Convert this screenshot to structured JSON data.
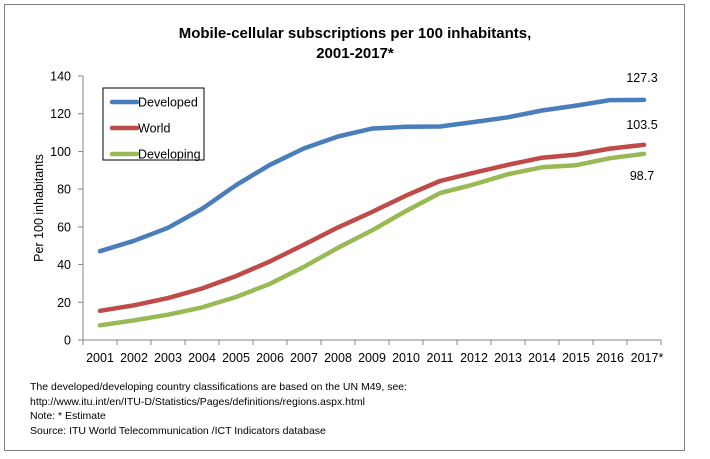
{
  "chart_data": {
    "type": "line",
    "title_line1": "Mobile-cellular subscriptions per 100 inhabitants,",
    "title_line2": "2001-2017*",
    "xlabel": "",
    "ylabel": "Per 100 inhabitants",
    "ylim": [
      0,
      140
    ],
    "yticks": [
      0,
      20,
      40,
      60,
      80,
      100,
      120,
      140
    ],
    "categories": [
      "2001",
      "2002",
      "2003",
      "2004",
      "2005",
      "2006",
      "2007",
      "2008",
      "2009",
      "2010",
      "2011",
      "2012",
      "2013",
      "2014",
      "2015",
      "2016",
      "2017*"
    ],
    "legend_position": "top-left",
    "grid": false,
    "series": [
      {
        "name": "Developed",
        "color": "#4a7ebb",
        "end_label": "127.3",
        "values": [
          47.1,
          52.6,
          59.5,
          69.5,
          82.1,
          92.9,
          101.6,
          107.9,
          112.1,
          113.1,
          113.2,
          115.6,
          118.1,
          121.7,
          124.3,
          127.2,
          127.3
        ]
      },
      {
        "name": "World",
        "color": "#be4b48",
        "end_label": "103.5",
        "values": [
          15.5,
          18.4,
          22.2,
          27.3,
          33.9,
          41.7,
          50.6,
          59.7,
          67.9,
          76.6,
          84.3,
          88.7,
          92.9,
          96.7,
          98.3,
          101.5,
          103.5
        ]
      },
      {
        "name": "Developing",
        "color": "#98b954",
        "end_label": "98.7",
        "values": [
          7.8,
          10.4,
          13.4,
          17.3,
          22.8,
          29.8,
          38.8,
          48.9,
          58.1,
          68.4,
          77.9,
          82.5,
          87.9,
          91.6,
          92.7,
          96.4,
          98.7
        ]
      }
    ]
  },
  "notes": [
    "The developed/developing country classifications are based on the UN M49, see:",
    "http://www.itu.int/en/ITU-D/Statistics/Pages/definitions/regions.aspx.html",
    "Note: * Estimate",
    "Source:  ITU World Telecommunication /ICT Indicators database"
  ]
}
